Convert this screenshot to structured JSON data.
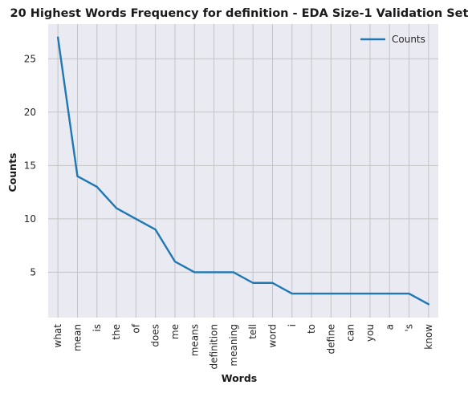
{
  "chart_data": {
    "type": "line",
    "title": "20 Highest Words Frequency for definition - EDA Size-1 Validation Set",
    "xlabel": "Words",
    "ylabel": "Counts",
    "categories": [
      "what",
      "mean",
      "is",
      "the",
      "of",
      "does",
      "me",
      "means",
      "definition",
      "meaning",
      "tell",
      "word",
      "i",
      "to",
      "define",
      "can",
      "you",
      "a",
      "'s",
      "know"
    ],
    "series": [
      {
        "name": "Counts",
        "color": "#1f77b4",
        "values": [
          27,
          14,
          13,
          11,
          10,
          9,
          6,
          5,
          5,
          5,
          4,
          4,
          3,
          3,
          3,
          3,
          3,
          3,
          3,
          2
        ]
      }
    ],
    "yticks": [
      5,
      10,
      15,
      20,
      25
    ],
    "ylim": [
      0.75,
      28.25
    ],
    "grid": true,
    "legend_position": "top-right",
    "background_color": "#eaeaf2"
  }
}
